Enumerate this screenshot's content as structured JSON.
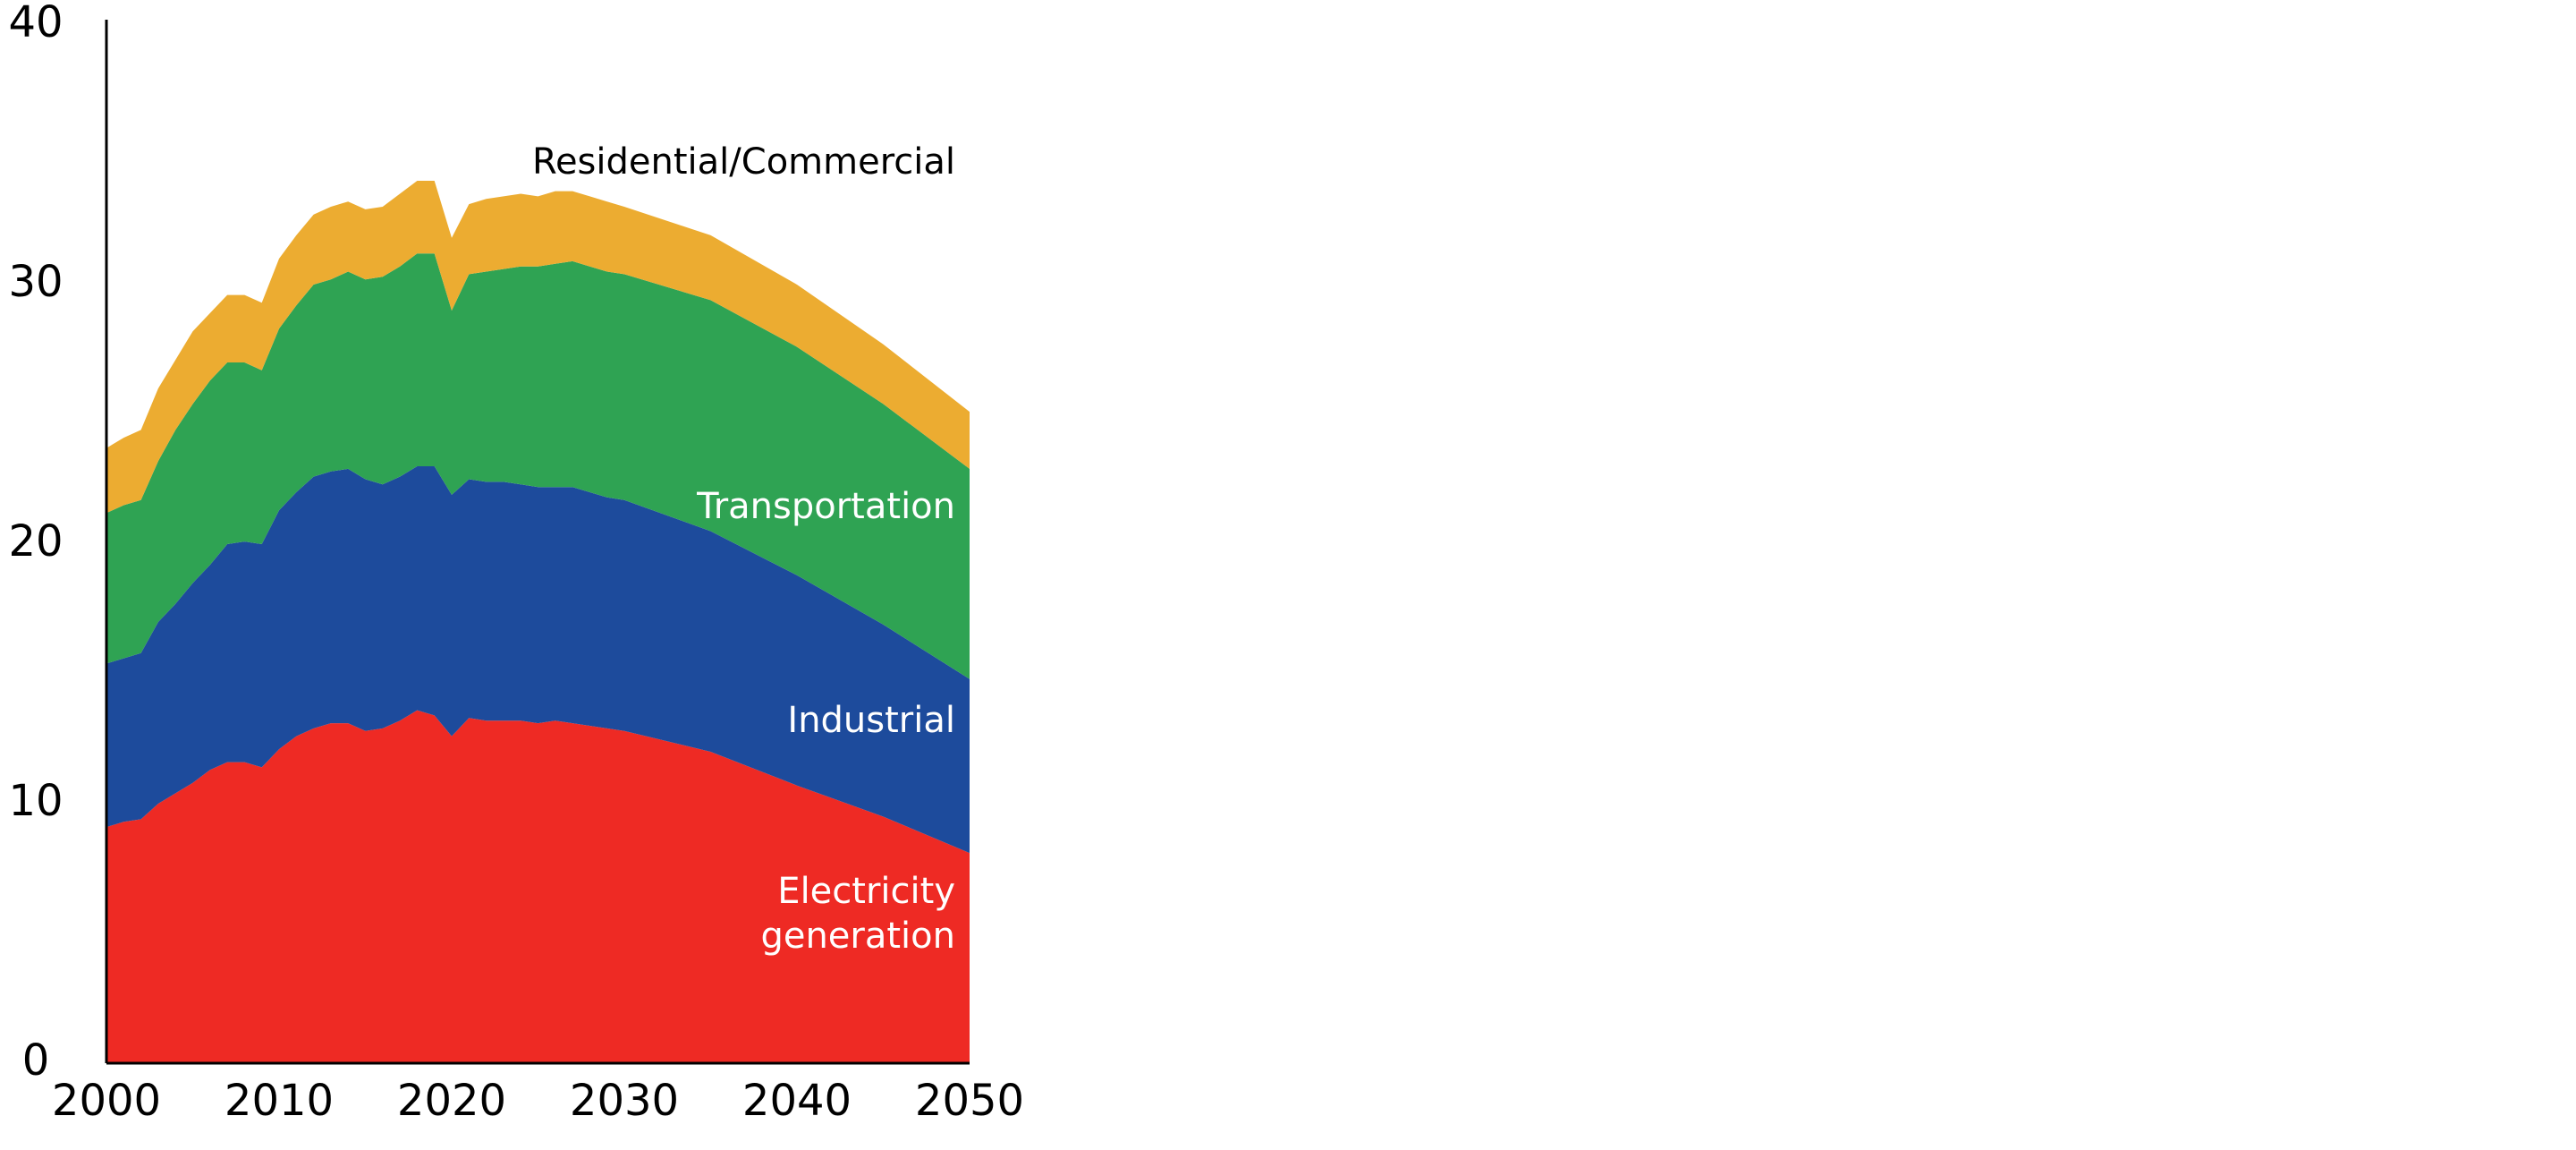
{
  "chart_data": {
    "type": "area",
    "stacked": true,
    "title": "",
    "xlabel": "",
    "ylabel": "",
    "xlim": [
      2000,
      2050
    ],
    "ylim": [
      0,
      40
    ],
    "x_ticks": [
      "2000",
      "2010",
      "2020",
      "2030",
      "2040",
      "2050"
    ],
    "y_ticks": [
      "0",
      "10",
      "20",
      "30",
      "40"
    ],
    "grid": false,
    "legend": "none",
    "x": [
      2000,
      2001,
      2002,
      2003,
      2004,
      2005,
      2006,
      2007,
      2008,
      2009,
      2010,
      2011,
      2012,
      2013,
      2014,
      2015,
      2016,
      2017,
      2018,
      2019,
      2020,
      2021,
      2022,
      2023,
      2024,
      2025,
      2026,
      2027,
      2028,
      2029,
      2030,
      2035,
      2040,
      2045,
      2050
    ],
    "series": [
      {
        "name": "Electricity generation",
        "label_lines": [
          "Electricity",
          "generation"
        ],
        "color": "#ee2a24",
        "label_color": "#ffffff",
        "values": [
          9.1,
          9.3,
          9.4,
          10.0,
          10.4,
          10.8,
          11.3,
          11.6,
          11.6,
          11.4,
          12.1,
          12.6,
          12.9,
          13.1,
          13.1,
          12.8,
          12.9,
          13.2,
          13.6,
          13.4,
          12.6,
          13.3,
          13.2,
          13.2,
          13.2,
          13.1,
          13.2,
          13.1,
          13.0,
          12.9,
          12.8,
          12.0,
          10.7,
          9.5,
          8.1
        ]
      },
      {
        "name": "Industrial",
        "label_lines": [
          "Industrial"
        ],
        "color": "#1d4b9c",
        "label_color": "#ffffff",
        "values": [
          6.3,
          6.3,
          6.4,
          7.0,
          7.3,
          7.7,
          7.9,
          8.4,
          8.5,
          8.6,
          9.2,
          9.4,
          9.7,
          9.7,
          9.8,
          9.7,
          9.4,
          9.4,
          9.4,
          9.6,
          9.3,
          9.2,
          9.2,
          9.2,
          9.1,
          9.1,
          9.0,
          9.1,
          9.0,
          8.9,
          8.9,
          8.5,
          8.1,
          7.4,
          6.7
        ]
      },
      {
        "name": "Transportation",
        "label_lines": [
          "Transportation"
        ],
        "color": "#2fa353",
        "label_color": "#ffffff",
        "values": [
          5.8,
          5.9,
          5.9,
          6.2,
          6.7,
          6.9,
          7.1,
          7.0,
          6.9,
          6.7,
          7.0,
          7.2,
          7.4,
          7.4,
          7.6,
          7.7,
          8.0,
          8.1,
          8.2,
          8.2,
          7.1,
          7.9,
          8.1,
          8.2,
          8.4,
          8.5,
          8.6,
          8.7,
          8.7,
          8.7,
          8.7,
          8.9,
          8.8,
          8.5,
          8.1
        ]
      },
      {
        "name": "Residential/Commercial",
        "label_lines": [
          "Residential/Commercial"
        ],
        "color": "#ecac31",
        "label_color": "#000000",
        "values": [
          2.5,
          2.6,
          2.7,
          2.8,
          2.7,
          2.8,
          2.6,
          2.6,
          2.6,
          2.6,
          2.7,
          2.7,
          2.7,
          2.8,
          2.7,
          2.7,
          2.7,
          2.8,
          2.8,
          2.8,
          2.8,
          2.7,
          2.8,
          2.8,
          2.8,
          2.7,
          2.8,
          2.7,
          2.7,
          2.7,
          2.6,
          2.5,
          2.4,
          2.3,
          2.2
        ]
      }
    ]
  }
}
